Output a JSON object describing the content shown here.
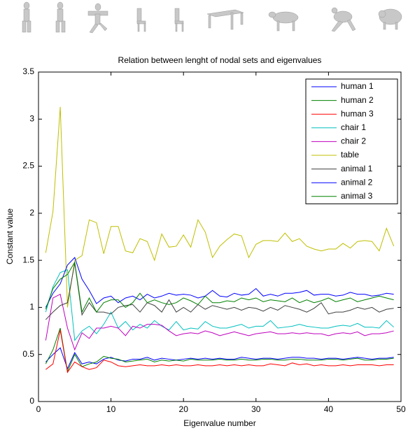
{
  "chart_data": {
    "type": "line",
    "title": "Relation between lenght of nodal sets and eigenvalues",
    "x_label": "Eigenvalue number",
    "y_label": "Constant value",
    "xlim": [
      0,
      50
    ],
    "xticks": [
      0,
      10,
      20,
      30,
      40,
      50
    ],
    "ylim": [
      0,
      3.5
    ],
    "yticks": [
      0,
      0.5,
      1,
      1.5,
      2,
      2.5,
      3,
      3.5
    ],
    "grid": false,
    "legend": "northeast",
    "x": [
      1,
      2,
      3,
      4,
      5,
      6,
      7,
      8,
      9,
      10,
      11,
      12,
      13,
      14,
      15,
      16,
      17,
      18,
      19,
      20,
      21,
      22,
      23,
      24,
      25,
      26,
      27,
      28,
      29,
      30,
      31,
      32,
      33,
      34,
      35,
      36,
      37,
      38,
      39,
      40,
      41,
      42,
      43,
      44,
      45,
      46,
      47,
      48,
      49
    ],
    "series": [
      {
        "name": "human 1",
        "color": "#0000ff",
        "values": [
          0.42,
          0.5,
          0.57,
          0.35,
          0.52,
          0.4,
          0.42,
          0.4,
          0.45,
          0.47,
          0.44,
          0.43,
          0.45,
          0.45,
          0.47,
          0.44,
          0.46,
          0.45,
          0.44,
          0.45,
          0.46,
          0.45,
          0.46,
          0.45,
          0.46,
          0.45,
          0.45,
          0.47,
          0.46,
          0.45,
          0.46,
          0.46,
          0.45,
          0.46,
          0.47,
          0.47,
          0.46,
          0.46,
          0.45,
          0.46,
          0.46,
          0.45,
          0.46,
          0.47,
          0.46,
          0.45,
          0.46,
          0.46,
          0.47
        ]
      },
      {
        "name": "human 2",
        "color": "#008000",
        "values": [
          0.4,
          0.55,
          0.78,
          0.32,
          0.5,
          0.37,
          0.4,
          0.42,
          0.48,
          0.46,
          0.45,
          0.42,
          0.43,
          0.44,
          0.45,
          0.42,
          0.44,
          0.43,
          0.44,
          0.43,
          0.45,
          0.44,
          0.44,
          0.44,
          0.45,
          0.44,
          0.44,
          0.45,
          0.44,
          0.44,
          0.45,
          0.45,
          0.44,
          0.44,
          0.45,
          0.45,
          0.44,
          0.44,
          0.44,
          0.45,
          0.45,
          0.44,
          0.45,
          0.46,
          0.44,
          0.44,
          0.45,
          0.45,
          0.46
        ]
      },
      {
        "name": "human 3",
        "color": "#ff0000",
        "values": [
          0.34,
          0.4,
          0.76,
          0.31,
          0.42,
          0.37,
          0.34,
          0.36,
          0.44,
          0.42,
          0.38,
          0.37,
          0.38,
          0.39,
          0.38,
          0.38,
          0.39,
          0.38,
          0.39,
          0.38,
          0.38,
          0.39,
          0.38,
          0.38,
          0.39,
          0.38,
          0.39,
          0.38,
          0.39,
          0.38,
          0.38,
          0.4,
          0.39,
          0.38,
          0.41,
          0.39,
          0.4,
          0.38,
          0.39,
          0.38,
          0.38,
          0.39,
          0.38,
          0.39,
          0.39,
          0.39,
          0.38,
          0.39,
          0.39
        ]
      },
      {
        "name": "chair 1",
        "color": "#00bfbf",
        "values": [
          0.95,
          1.22,
          1.37,
          1.4,
          0.65,
          0.75,
          0.8,
          0.72,
          0.82,
          0.95,
          0.78,
          0.85,
          0.76,
          0.82,
          0.78,
          0.86,
          0.8,
          0.76,
          0.85,
          0.76,
          0.78,
          0.77,
          0.85,
          0.8,
          0.78,
          0.78,
          0.8,
          0.82,
          0.78,
          0.8,
          0.8,
          0.86,
          0.78,
          0.79,
          0.8,
          0.82,
          0.8,
          0.79,
          0.78,
          0.78,
          0.8,
          0.81,
          0.8,
          0.83,
          0.79,
          0.79,
          0.78,
          0.86,
          0.79
        ]
      },
      {
        "name": "chair 2",
        "color": "#bf00bf",
        "values": [
          0.65,
          1.1,
          1.14,
          0.78,
          0.55,
          0.73,
          0.67,
          0.78,
          0.78,
          0.8,
          0.78,
          0.7,
          0.8,
          0.78,
          0.82,
          0.82,
          0.81,
          0.75,
          0.7,
          0.72,
          0.73,
          0.72,
          0.75,
          0.73,
          0.7,
          0.72,
          0.74,
          0.72,
          0.7,
          0.72,
          0.73,
          0.74,
          0.72,
          0.72,
          0.73,
          0.72,
          0.73,
          0.72,
          0.72,
          0.7,
          0.72,
          0.73,
          0.72,
          0.74,
          0.7,
          0.72,
          0.72,
          0.73,
          0.75
        ]
      },
      {
        "name": "table",
        "color": "#bfbf00",
        "values": [
          1.58,
          2.02,
          3.13,
          1.0,
          1.5,
          1.55,
          1.93,
          1.9,
          1.57,
          1.86,
          1.86,
          1.6,
          1.58,
          1.73,
          1.7,
          1.5,
          1.78,
          1.64,
          1.65,
          1.77,
          1.64,
          1.93,
          1.8,
          1.53,
          1.65,
          1.72,
          1.78,
          1.76,
          1.53,
          1.67,
          1.71,
          1.71,
          1.7,
          1.79,
          1.7,
          1.73,
          1.65,
          1.62,
          1.6,
          1.62,
          1.62,
          1.68,
          1.63,
          1.7,
          1.71,
          1.7,
          1.6,
          1.84,
          1.65
        ]
      },
      {
        "name": "animal 1",
        "color": "#404040",
        "values": [
          0.87,
          0.95,
          1.02,
          1.05,
          1.47,
          0.92,
          1.05,
          0.95,
          0.95,
          0.93,
          1.0,
          1.02,
          1.03,
          0.95,
          1.05,
          1.02,
          0.95,
          1.08,
          0.95,
          1.0,
          0.95,
          1.03,
          0.98,
          1.02,
          1.0,
          0.98,
          1.0,
          0.97,
          1.0,
          0.99,
          0.96,
          1.0,
          0.97,
          1.02,
          1.0,
          0.98,
          0.95,
          0.99,
          1.05,
          0.93,
          0.95,
          0.95,
          0.97,
          1.0,
          0.98,
          1.0,
          0.95,
          0.98,
          0.99
        ]
      },
      {
        "name": "animal 2",
        "color": "#0000ff",
        "values": [
          1.0,
          1.15,
          1.25,
          1.45,
          1.53,
          1.3,
          1.18,
          1.04,
          1.1,
          1.12,
          1.05,
          1.1,
          1.12,
          1.08,
          1.14,
          1.1,
          1.12,
          1.15,
          1.13,
          1.14,
          1.13,
          1.1,
          1.12,
          1.18,
          1.12,
          1.11,
          1.15,
          1.13,
          1.14,
          1.2,
          1.12,
          1.14,
          1.12,
          1.15,
          1.15,
          1.16,
          1.18,
          1.13,
          1.14,
          1.14,
          1.12,
          1.13,
          1.16,
          1.14,
          1.14,
          1.12,
          1.13,
          1.15,
          1.14
        ]
      },
      {
        "name": "animal 3",
        "color": "#008000",
        "values": [
          0.98,
          1.2,
          1.3,
          1.35,
          1.48,
          0.95,
          1.1,
          0.95,
          1.05,
          1.08,
          1.08,
          1.0,
          1.05,
          1.15,
          1.05,
          1.08,
          1.05,
          1.03,
          1.05,
          1.1,
          1.07,
          1.03,
          1.12,
          1.05,
          1.05,
          1.07,
          1.06,
          1.1,
          1.08,
          1.1,
          1.06,
          1.08,
          1.07,
          1.06,
          1.1,
          1.05,
          1.08,
          1.05,
          1.07,
          1.1,
          1.06,
          1.08,
          1.1,
          1.06,
          1.08,
          1.1,
          1.12,
          1.1,
          1.08
        ]
      }
    ]
  }
}
